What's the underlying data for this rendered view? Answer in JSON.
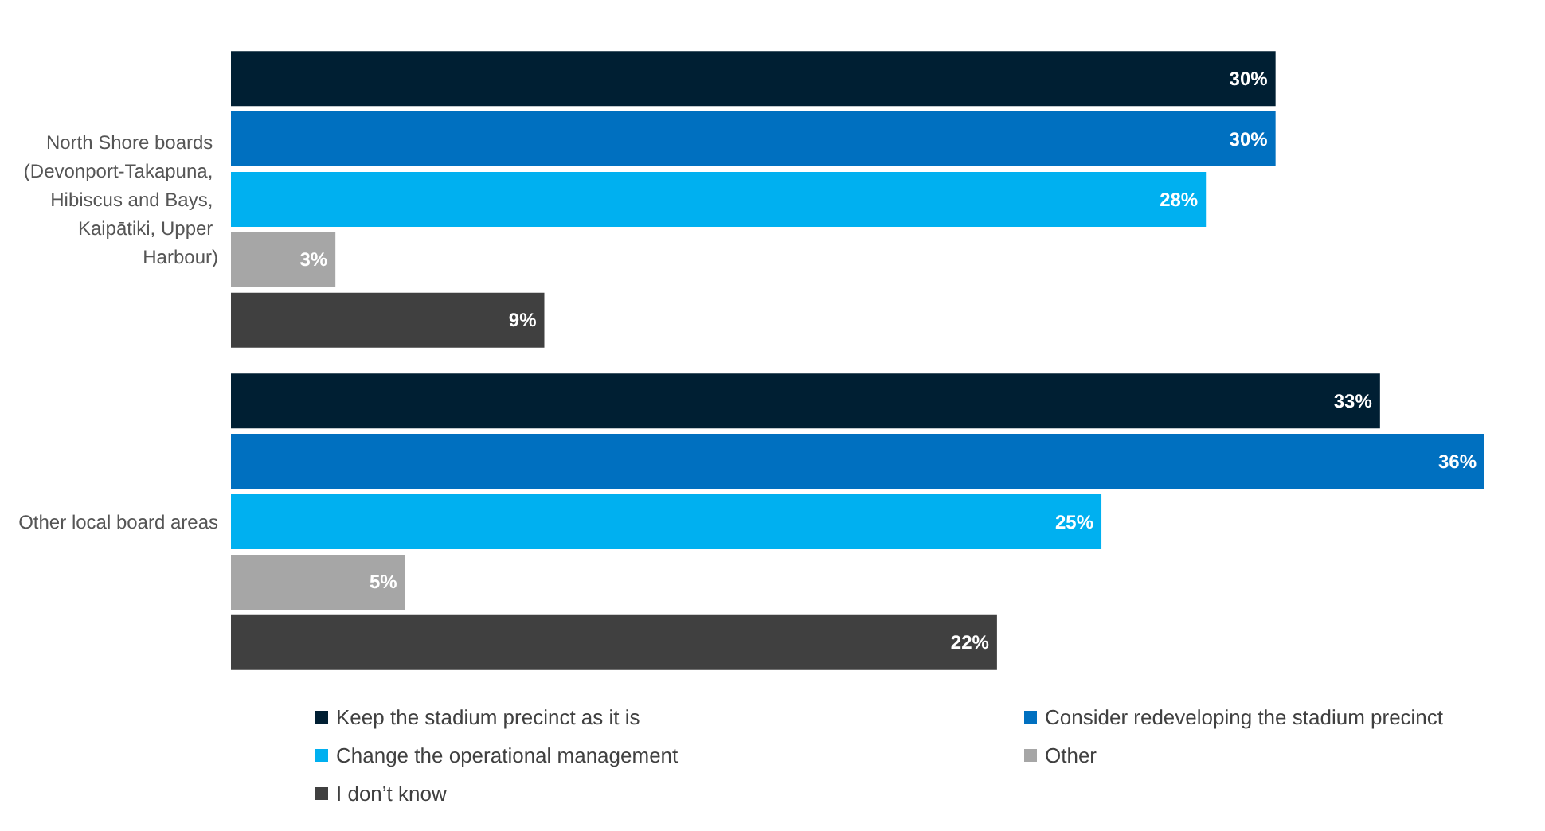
{
  "chart_data": {
    "type": "bar",
    "orientation": "horizontal",
    "categories": [
      "North Shore boards (Devonport-Takapuna, Hibiscus and Bays, Kaipātiki, Upper Harbour)",
      "Other local board areas"
    ],
    "series": [
      {
        "name": "Keep the stadium precinct as it is",
        "color": "#001f33",
        "values": [
          30,
          33
        ],
        "value_labels": [
          "30%",
          "33%"
        ]
      },
      {
        "name": "Consider redeveloping the stadium precinct",
        "color": "#0070c0",
        "values": [
          30,
          36
        ],
        "value_labels": [
          "30%",
          "36%"
        ]
      },
      {
        "name": "Change the operational management",
        "color": "#00b0f0",
        "values": [
          28,
          25
        ],
        "value_labels": [
          "28%",
          "25%"
        ]
      },
      {
        "name": "Other",
        "color": "#a6a6a6",
        "values": [
          3,
          5
        ],
        "value_labels": [
          "3%",
          "5%"
        ]
      },
      {
        "name": "I don’t know",
        "color": "#404040",
        "values": [
          9,
          22
        ],
        "value_labels": [
          "9%",
          "22%"
        ]
      }
    ],
    "legend": "bottom"
  }
}
